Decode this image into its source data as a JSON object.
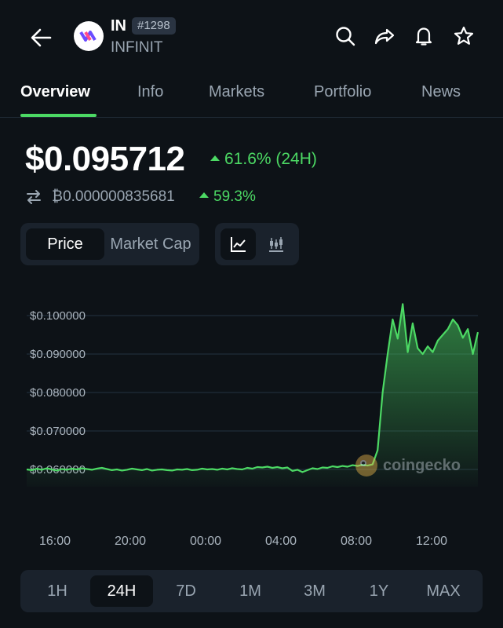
{
  "header": {
    "symbol": "IN",
    "rank": "#1298",
    "name": "INFINIT",
    "icons": [
      "back-arrow-icon",
      "search-icon",
      "share-icon",
      "bell-icon",
      "star-icon"
    ]
  },
  "tabs": [
    {
      "label": "Overview",
      "active": true
    },
    {
      "label": "Info",
      "active": false
    },
    {
      "label": "Markets",
      "active": false
    },
    {
      "label": "Portfolio",
      "active": false
    },
    {
      "label": "News",
      "active": false
    }
  ],
  "price": {
    "usd": "$0.095712",
    "change_24h": "61.6% (24H)",
    "btc": "₿0.000000835681",
    "btc_change": "59.3%"
  },
  "toggles": {
    "metric": [
      {
        "label": "Price",
        "active": true
      },
      {
        "label": "Market Cap",
        "active": false
      }
    ],
    "chart_style": [
      {
        "icon": "line-chart-icon",
        "active": true
      },
      {
        "icon": "candlestick-chart-icon",
        "active": false
      }
    ]
  },
  "colors": {
    "background": "#0d1217",
    "accent": "#4cd964",
    "panel": "#1a222c"
  },
  "chart_data": {
    "type": "area",
    "y_ticks": [
      "$0.100000",
      "$0.090000",
      "$0.080000",
      "$0.070000",
      "$0.060000"
    ],
    "ylim": [
      0.0555,
      0.1045
    ],
    "x_ticks": [
      "16:00",
      "20:00",
      "00:00",
      "04:00",
      "08:00",
      "12:00"
    ],
    "grid": true,
    "watermark": "coingecko",
    "series": [
      {
        "values": [
          0.06,
          0.0598,
          0.0602,
          0.0599,
          0.0603,
          0.06,
          0.0597,
          0.0601,
          0.0599,
          0.0602,
          0.06,
          0.0603,
          0.0601,
          0.0599,
          0.0602,
          0.0604,
          0.0601,
          0.0598,
          0.06,
          0.0597,
          0.0599,
          0.0602,
          0.06,
          0.0598,
          0.0601,
          0.0597,
          0.0599,
          0.06,
          0.0598,
          0.0597,
          0.06,
          0.0599,
          0.0601,
          0.0598,
          0.0599,
          0.0602,
          0.06,
          0.0601,
          0.0599,
          0.0602,
          0.06,
          0.0603,
          0.0601,
          0.06,
          0.0604,
          0.0602,
          0.0606,
          0.0605,
          0.0607,
          0.0604,
          0.0606,
          0.0603,
          0.0605,
          0.0596,
          0.0599,
          0.0593,
          0.0598,
          0.0603,
          0.0601,
          0.0605,
          0.0604,
          0.0608,
          0.0606,
          0.0609,
          0.0607,
          0.0611,
          0.0609,
          0.0612,
          0.061,
          0.0613,
          0.065,
          0.08,
          0.09,
          0.099,
          0.094,
          0.103,
          0.0905,
          0.098,
          0.0915,
          0.09,
          0.092,
          0.0905,
          0.0935,
          0.095,
          0.0965,
          0.099,
          0.0975,
          0.0942,
          0.0965,
          0.09,
          0.0957
        ]
      }
    ]
  },
  "range": [
    {
      "label": "1H",
      "active": false
    },
    {
      "label": "24H",
      "active": true
    },
    {
      "label": "7D",
      "active": false
    },
    {
      "label": "1M",
      "active": false
    },
    {
      "label": "3M",
      "active": false
    },
    {
      "label": "1Y",
      "active": false
    },
    {
      "label": "MAX",
      "active": false
    }
  ]
}
